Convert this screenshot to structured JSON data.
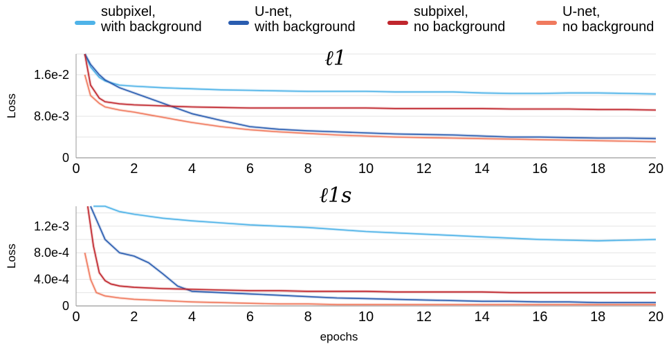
{
  "legend": [
    {
      "label": "subpixel,\nwith background",
      "color": "#4fb3e8"
    },
    {
      "label": "U-net,\nwith background",
      "color": "#2a5db0"
    },
    {
      "label": "subpixel,\nno background",
      "color": "#c0262d"
    },
    {
      "label": "U-net,\nno background",
      "color": "#f07a5e"
    }
  ],
  "chart_data": [
    {
      "type": "line",
      "title": "ℓ1",
      "xlabel": "",
      "ylabel": "Loss",
      "xlim": [
        0,
        20
      ],
      "ylim": [
        0,
        0.02
      ],
      "xticks": [
        "0",
        "2",
        "4",
        "6",
        "8",
        "10",
        "12",
        "14",
        "16",
        "18",
        "20"
      ],
      "yticks": [
        {
          "value": 0,
          "label": "0"
        },
        {
          "value": 0.008,
          "label": "8.0e-3"
        },
        {
          "value": 0.016,
          "label": "1.6e-2"
        }
      ],
      "grid": true,
      "series": [
        {
          "name": "subpixel, with background",
          "color": "#4fb3e8",
          "x": [
            0.3,
            0.5,
            0.8,
            1,
            1.5,
            2,
            3,
            4,
            5,
            6,
            7,
            8,
            9,
            10,
            11,
            12,
            13,
            14,
            15,
            16,
            17,
            18,
            19,
            20
          ],
          "y": [
            0.021,
            0.0175,
            0.0155,
            0.0148,
            0.014,
            0.0138,
            0.0135,
            0.0133,
            0.0131,
            0.013,
            0.0129,
            0.0128,
            0.0128,
            0.0128,
            0.0127,
            0.0127,
            0.0127,
            0.0125,
            0.0124,
            0.0124,
            0.0125,
            0.0125,
            0.0124,
            0.0123
          ]
        },
        {
          "name": "U-net, with background",
          "color": "#2a5db0",
          "x": [
            0.3,
            0.5,
            0.8,
            1,
            1.5,
            2,
            2.5,
            3,
            3.5,
            4,
            5,
            6,
            7,
            8,
            9,
            10,
            11,
            12,
            13,
            14,
            15,
            16,
            17,
            18,
            19,
            20
          ],
          "y": [
            0.021,
            0.018,
            0.016,
            0.015,
            0.0135,
            0.0125,
            0.0115,
            0.0105,
            0.0095,
            0.0085,
            0.0072,
            0.006,
            0.0055,
            0.0052,
            0.005,
            0.0048,
            0.0046,
            0.0045,
            0.0044,
            0.0042,
            0.004,
            0.004,
            0.0039,
            0.0038,
            0.0038,
            0.0037
          ]
        },
        {
          "name": "subpixel, no background",
          "color": "#c0262d",
          "x": [
            0.3,
            0.5,
            0.8,
            1,
            1.5,
            2,
            3,
            4,
            5,
            6,
            7,
            8,
            9,
            10,
            11,
            12,
            13,
            14,
            15,
            16,
            17,
            18,
            19,
            20
          ],
          "y": [
            0.02,
            0.014,
            0.0115,
            0.0108,
            0.0104,
            0.0102,
            0.01,
            0.0098,
            0.0097,
            0.0096,
            0.0096,
            0.0096,
            0.0096,
            0.0096,
            0.0095,
            0.0095,
            0.0095,
            0.0095,
            0.0094,
            0.0094,
            0.0094,
            0.0093,
            0.0093,
            0.0092
          ]
        },
        {
          "name": "U-net, no background",
          "color": "#f07a5e",
          "x": [
            0.3,
            0.5,
            0.8,
            1,
            1.5,
            2,
            2.5,
            3,
            3.5,
            4,
            5,
            6,
            7,
            8,
            9,
            10,
            11,
            12,
            13,
            14,
            15,
            16,
            17,
            18,
            19,
            20
          ],
          "y": [
            0.016,
            0.012,
            0.0105,
            0.0098,
            0.0092,
            0.0088,
            0.0083,
            0.0078,
            0.0073,
            0.0068,
            0.006,
            0.0054,
            0.005,
            0.0047,
            0.0044,
            0.0042,
            0.004,
            0.0039,
            0.0038,
            0.0037,
            0.0036,
            0.0035,
            0.0034,
            0.0033,
            0.0032,
            0.0031
          ]
        }
      ]
    },
    {
      "type": "line",
      "title": "ℓ1s",
      "xlabel": "epochs",
      "ylabel": "Loss",
      "xlim": [
        0,
        20
      ],
      "ylim": [
        0,
        0.0015
      ],
      "xticks": [
        "0",
        "2",
        "4",
        "6",
        "8",
        "10",
        "12",
        "14",
        "16",
        "18",
        "20"
      ],
      "yticks": [
        {
          "value": 0,
          "label": "0"
        },
        {
          "value": 0.0004,
          "label": "4.0e-4"
        },
        {
          "value": 0.0008,
          "label": "8.0e-4"
        },
        {
          "value": 0.0012,
          "label": "1.2e-3"
        }
      ],
      "grid": true,
      "series": [
        {
          "name": "subpixel, with background",
          "color": "#4fb3e8",
          "x": [
            0.6,
            0.8,
            1,
            1.5,
            2,
            3,
            4,
            5,
            6,
            7,
            8,
            9,
            10,
            11,
            12,
            13,
            14,
            15,
            16,
            17,
            18,
            19,
            20
          ],
          "y": [
            0.0016,
            0.00155,
            0.0015,
            0.00142,
            0.00138,
            0.00132,
            0.00128,
            0.00125,
            0.00122,
            0.0012,
            0.00118,
            0.00115,
            0.00112,
            0.0011,
            0.00108,
            0.00106,
            0.00104,
            0.00102,
            0.001,
            0.00099,
            0.00098,
            0.00099,
            0.001
          ]
        },
        {
          "name": "U-net, with background",
          "color": "#2a5db0",
          "x": [
            0.5,
            0.7,
            1,
            1.5,
            2,
            2.5,
            3,
            3.5,
            4,
            5,
            6,
            7,
            8,
            9,
            10,
            11,
            12,
            13,
            14,
            15,
            16,
            17,
            18,
            19,
            20
          ],
          "y": [
            0.0016,
            0.0013,
            0.001,
            0.0008,
            0.00075,
            0.00065,
            0.00048,
            0.0003,
            0.00022,
            0.0002,
            0.00018,
            0.00016,
            0.00014,
            0.00012,
            0.00011,
            0.0001,
            9e-05,
            8e-05,
            7e-05,
            7e-05,
            6e-05,
            6e-05,
            5e-05,
            5e-05,
            5e-05
          ]
        },
        {
          "name": "subpixel, no background",
          "color": "#c0262d",
          "x": [
            0.4,
            0.6,
            0.8,
            1,
            1.2,
            1.5,
            2,
            3,
            4,
            5,
            6,
            7,
            8,
            9,
            10,
            11,
            12,
            13,
            14,
            15,
            16,
            17,
            18,
            19,
            20
          ],
          "y": [
            0.0016,
            0.0009,
            0.0005,
            0.00038,
            0.00033,
            0.0003,
            0.00028,
            0.00026,
            0.00025,
            0.00024,
            0.00023,
            0.00023,
            0.00022,
            0.00022,
            0.00022,
            0.00021,
            0.00021,
            0.00021,
            0.00021,
            0.0002,
            0.0002,
            0.0002,
            0.0002,
            0.0002,
            0.0002
          ]
        },
        {
          "name": "U-net, no background",
          "color": "#f07a5e",
          "x": [
            0.3,
            0.5,
            0.7,
            1,
            1.5,
            2,
            3,
            4,
            5,
            6,
            7,
            8,
            9,
            10,
            11,
            12,
            13,
            14,
            15,
            16,
            17,
            18,
            19,
            20
          ],
          "y": [
            0.0008,
            0.0004,
            0.0002,
            0.00015,
            0.00012,
            0.0001,
            8e-05,
            6e-05,
            5e-05,
            4e-05,
            3e-05,
            3e-05,
            2e-05,
            2e-05,
            2e-05,
            2e-05,
            2e-05,
            2e-05,
            2e-05,
            2e-05,
            2e-05,
            2e-05,
            2e-05,
            2e-05
          ]
        }
      ]
    }
  ]
}
